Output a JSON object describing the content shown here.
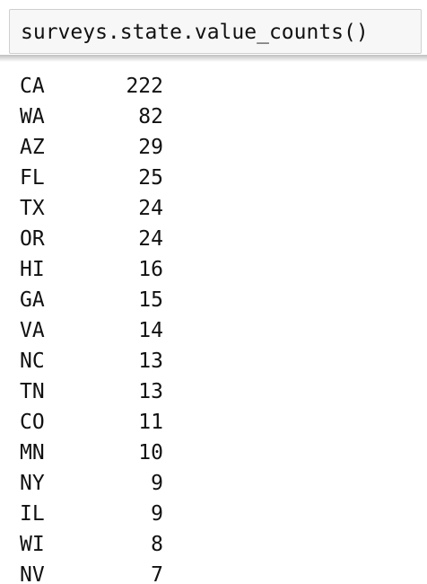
{
  "input": {
    "code": "surveys.state.value_counts()"
  },
  "output": {
    "rows": [
      {
        "key": "CA",
        "value": "222"
      },
      {
        "key": "WA",
        "value": "82"
      },
      {
        "key": "AZ",
        "value": "29"
      },
      {
        "key": "FL",
        "value": "25"
      },
      {
        "key": "TX",
        "value": "24"
      },
      {
        "key": "OR",
        "value": "24"
      },
      {
        "key": "HI",
        "value": "16"
      },
      {
        "key": "GA",
        "value": "15"
      },
      {
        "key": "VA",
        "value": "14"
      },
      {
        "key": "NC",
        "value": "13"
      },
      {
        "key": "TN",
        "value": "13"
      },
      {
        "key": "CO",
        "value": "11"
      },
      {
        "key": "MN",
        "value": "10"
      },
      {
        "key": "NY",
        "value": "9"
      },
      {
        "key": "IL",
        "value": "9"
      },
      {
        "key": "WI",
        "value": "8"
      },
      {
        "key": "NV",
        "value": "7"
      }
    ]
  }
}
